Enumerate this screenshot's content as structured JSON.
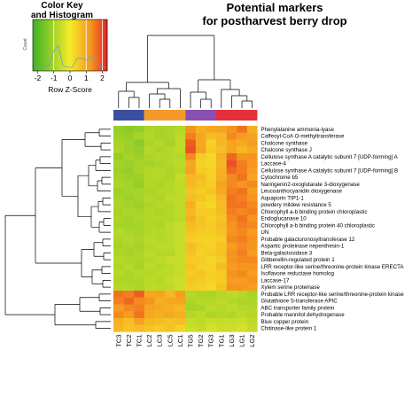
{
  "chart_data": {
    "type": "heatmap",
    "title": "Potential markers\nfor postharvest berry drop",
    "color_key": {
      "title": "Color Key\nand Histogram",
      "xlabel": "Row Z-Score",
      "ylabel": "Count",
      "ticks": [
        "-2",
        "-1",
        "0",
        "1",
        "2"
      ],
      "range": [
        -2.3,
        2.3
      ]
    },
    "columns": [
      "TC3",
      "TC2",
      "TC1",
      "LC2",
      "LC3",
      "LC5",
      "LC1",
      "TG5",
      "TG2",
      "TG3",
      "TG1",
      "LG3",
      "LG1",
      "LG2"
    ],
    "column_groups": [
      {
        "color": "#3b4fa0",
        "count": 3
      },
      {
        "color": "#f59a2a",
        "count": 4
      },
      {
        "color": "#8a4fb0",
        "count": 3
      },
      {
        "color": "#e5303a",
        "count": 4
      }
    ],
    "rows": [
      "Phenylalanine ammonia-lyase",
      "Caffeoyl-CoA O-methyltransferase",
      "Chalcone synthase",
      "Chalcone synthase J",
      "Cellulose synthase A catalytic subunit 7 [UDP-forming] A",
      "Laccase-4",
      "Cellulose synthase A catalytic subunit 7 [UDP-forming] B",
      "Cytochrome b5",
      "Naringenin2-oxoglutarate 3-dioxygenase",
      "Leucoanthocyanidin dioxygenase",
      "Aquaporin TIP1-1",
      "powdery mildew resistance 5",
      "Chlorophyll a-b binding protein chloroplastic",
      "Endoglucanase 10",
      "Chlorophyll a-b binding protein 40 chloroplastic",
      "UN",
      "Probable galacturonosyltransferase 12",
      "Aspartic proteinase nepenthesin-1",
      "Beta-galactosidase 3",
      "Gibberellin-regulated protein 1",
      "LRR receptor-like serine/threonine-protein kinase ERECTA",
      "Isoflavone reductase homolog",
      "Laccase-17",
      "Xylem serine proteinase",
      "Probable LRR receptor-like serine/threonine-protein kinase",
      "Glutathione S-transferase APIC",
      "ABC transporter family protein",
      "Probable mannitol dehydrogenase",
      "Blue copper protein",
      "Chitinase-like protein 1"
    ],
    "values": [
      [
        -1.2,
        -1.3,
        -1.2,
        -0.9,
        -1.0,
        -0.9,
        -0.8,
        1.3,
        0.9,
        1.0,
        1.1,
        1.3,
        1.6,
        0.9
      ],
      [
        -1.1,
        -1.2,
        -1.0,
        -0.8,
        -1.0,
        -0.9,
        -0.7,
        1.5,
        1.0,
        0.7,
        0.8,
        1.4,
        1.2,
        1.1
      ],
      [
        -1.0,
        -1.1,
        -1.3,
        -0.9,
        -0.8,
        -1.0,
        -0.7,
        1.8,
        1.0,
        0.4,
        0.8,
        1.1,
        1.0,
        1.2
      ],
      [
        -0.9,
        -1.1,
        -1.2,
        -0.8,
        -0.9,
        -0.8,
        -0.7,
        1.9,
        1.1,
        0.5,
        0.7,
        1.1,
        0.8,
        1.0
      ],
      [
        -1.2,
        -1.0,
        -1.1,
        -0.9,
        -0.8,
        -0.8,
        -0.8,
        1.4,
        0.5,
        0.3,
        0.9,
        1.7,
        1.3,
        1.3
      ],
      [
        -1.0,
        -1.1,
        -1.0,
        -1.0,
        -0.9,
        -0.8,
        -0.7,
        1.0,
        0.4,
        0.3,
        0.8,
        1.9,
        1.5,
        1.3
      ],
      [
        -1.1,
        -1.2,
        -1.0,
        -0.8,
        -0.8,
        -0.9,
        -0.8,
        1.1,
        0.5,
        0.4,
        0.9,
        1.7,
        1.5,
        1.2
      ],
      [
        -1.0,
        -1.1,
        -1.1,
        -0.8,
        -0.8,
        -0.9,
        -0.6,
        0.8,
        0.7,
        0.4,
        0.9,
        1.4,
        1.6,
        1.1
      ],
      [
        -0.9,
        -1.0,
        -1.2,
        -0.8,
        -0.9,
        -0.8,
        -0.7,
        0.8,
        0.6,
        0.5,
        1.1,
        1.4,
        1.3,
        1.4
      ],
      [
        -1.1,
        -1.0,
        -1.0,
        -0.9,
        -0.8,
        -0.8,
        -0.7,
        0.6,
        0.5,
        0.6,
        1.0,
        1.5,
        1.6,
        1.2
      ],
      [
        -1.0,
        -1.1,
        -1.0,
        -0.8,
        -0.9,
        -0.7,
        -0.7,
        0.7,
        0.6,
        0.4,
        0.8,
        1.6,
        1.5,
        1.3
      ],
      [
        -0.9,
        -1.0,
        -1.1,
        -0.9,
        -0.8,
        -0.8,
        -0.7,
        0.9,
        0.4,
        0.3,
        0.7,
        1.6,
        1.6,
        1.4
      ],
      [
        -1.0,
        -0.9,
        -1.0,
        -0.8,
        -0.9,
        -0.8,
        -0.7,
        0.8,
        0.5,
        0.5,
        0.7,
        1.5,
        1.4,
        1.5
      ],
      [
        -0.9,
        -1.0,
        -0.9,
        -0.8,
        -0.8,
        -0.8,
        -0.7,
        0.9,
        0.6,
        0.4,
        0.6,
        1.4,
        1.6,
        1.3
      ],
      [
        -1.0,
        -1.0,
        -1.0,
        -0.8,
        -0.9,
        -0.7,
        -0.6,
        0.7,
        0.6,
        0.5,
        0.7,
        1.3,
        1.5,
        1.4
      ],
      [
        -0.8,
        -0.9,
        -1.0,
        -0.8,
        -0.8,
        -0.7,
        -0.6,
        0.6,
        0.5,
        0.5,
        0.6,
        1.3,
        1.4,
        1.2
      ],
      [
        -0.9,
        -0.8,
        -0.9,
        -0.7,
        -0.8,
        -0.7,
        -0.6,
        0.5,
        0.4,
        0.4,
        0.5,
        1.4,
        1.5,
        1.3
      ],
      [
        -1.0,
        -0.9,
        -1.0,
        -0.8,
        -0.7,
        -0.7,
        -0.6,
        0.7,
        0.5,
        0.4,
        0.6,
        1.2,
        1.4,
        1.3
      ],
      [
        -0.9,
        -1.0,
        -0.9,
        -0.7,
        -0.8,
        -0.8,
        -0.6,
        0.6,
        0.4,
        0.5,
        0.6,
        1.3,
        1.5,
        1.2
      ],
      [
        -0.8,
        -0.9,
        -0.9,
        -0.8,
        -0.7,
        -0.6,
        -0.6,
        0.5,
        0.5,
        0.3,
        0.5,
        1.3,
        1.4,
        1.4
      ],
      [
        -0.9,
        -0.8,
        -1.0,
        -0.7,
        -0.8,
        -0.7,
        -0.6,
        0.6,
        0.4,
        0.4,
        0.7,
        1.2,
        1.3,
        1.3
      ],
      [
        -0.8,
        -0.9,
        -0.8,
        -0.8,
        -0.7,
        -0.7,
        -0.6,
        0.5,
        0.6,
        0.4,
        0.5,
        1.3,
        1.4,
        1.2
      ],
      [
        -0.9,
        -0.9,
        -0.9,
        -0.7,
        -0.8,
        -0.6,
        -0.5,
        0.6,
        0.5,
        0.4,
        0.5,
        1.2,
        1.2,
        1.3
      ],
      [
        -0.8,
        -0.8,
        -0.9,
        -0.7,
        -0.7,
        -0.7,
        -0.5,
        0.5,
        0.4,
        0.3,
        0.6,
        1.3,
        1.3,
        1.2
      ],
      [
        1.6,
        1.5,
        1.8,
        1.0,
        1.1,
        0.8,
        1.2,
        -0.8,
        -0.9,
        -0.9,
        -0.8,
        -0.7,
        -0.8,
        -1.0
      ],
      [
        1.5,
        1.7,
        1.4,
        1.3,
        0.9,
        1.0,
        1.1,
        -0.9,
        -0.8,
        -0.8,
        -0.7,
        -0.8,
        -0.9,
        -0.9
      ],
      [
        1.2,
        1.4,
        1.5,
        1.1,
        1.0,
        0.9,
        0.8,
        -1.0,
        -0.9,
        -0.7,
        -0.8,
        -0.7,
        -0.8,
        -0.8
      ],
      [
        1.4,
        1.2,
        1.6,
        1.0,
        0.9,
        1.0,
        0.9,
        -0.8,
        -0.7,
        -0.9,
        -0.8,
        -0.9,
        -0.7,
        -0.8
      ],
      [
        0.9,
        0.7,
        1.1,
        0.8,
        0.7,
        0.6,
        0.7,
        -0.6,
        -0.7,
        -0.5,
        -0.6,
        -0.6,
        -0.5,
        -0.7
      ],
      [
        0.8,
        0.6,
        0.7,
        0.6,
        0.5,
        0.6,
        0.4,
        -0.5,
        -0.6,
        -0.4,
        -0.5,
        -0.5,
        -0.4,
        -0.6
      ]
    ]
  }
}
